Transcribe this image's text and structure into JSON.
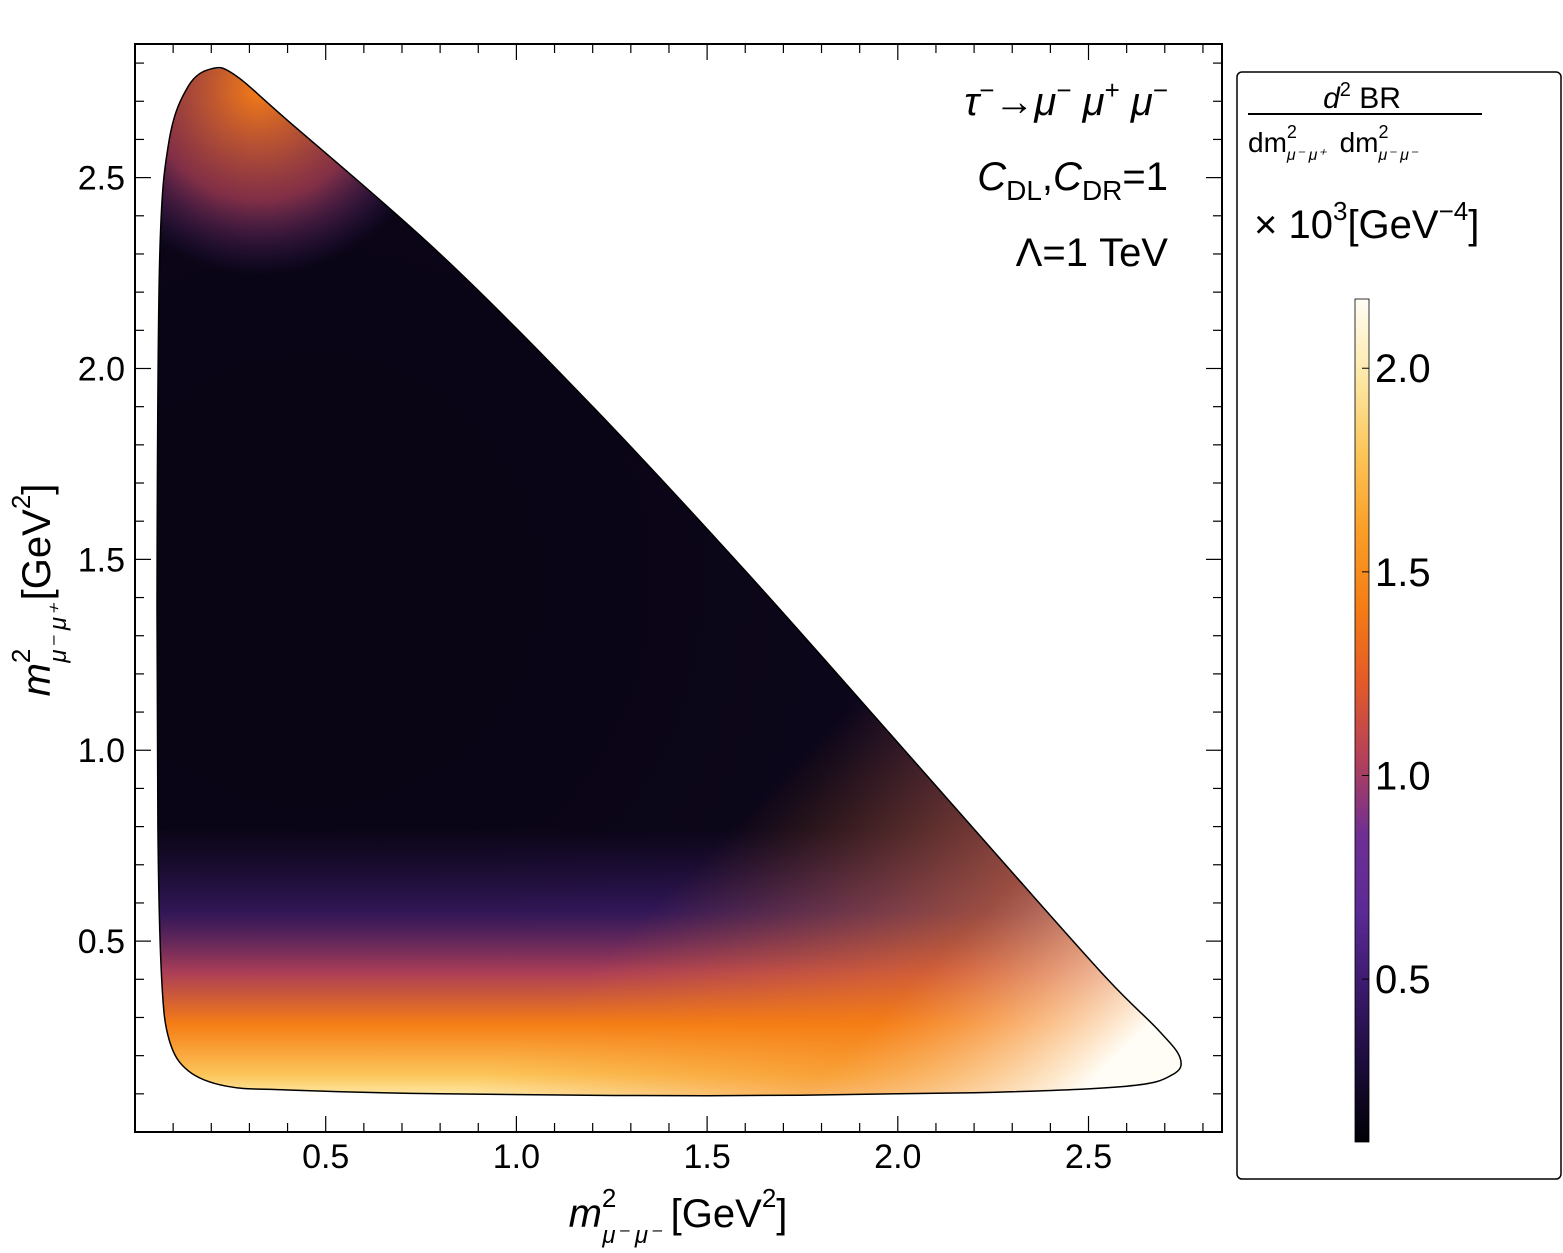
{
  "chart_data": {
    "type": "heatmap",
    "title": "",
    "annotations": {
      "process": {
        "tau": "τ",
        "minus": "−",
        "arrow": "→",
        "mu": "μ",
        "plus": "+"
      },
      "coeff": {
        "c": "C",
        "dl": "DL",
        "comma": ",",
        "dr": "DR",
        "eq": "=1"
      },
      "scale": "Λ=1 TeV"
    },
    "xlabel": {
      "base": "m",
      "sup": "2",
      "sub": "μ⁻ μ⁻",
      "units": "[GeV",
      "units_sup": "2",
      "units_close": "]"
    },
    "ylabel": {
      "base": "m",
      "sup": "2",
      "sub": "μ⁻ μ⁺",
      "units": "[GeV",
      "units_sup": "2",
      "units_close": "]"
    },
    "x_range": [
      0.0,
      2.85
    ],
    "y_range": [
      0.0,
      2.85
    ],
    "x_ticks": [
      {
        "value": 0.5,
        "label": "0.5"
      },
      {
        "value": 1.0,
        "label": "1.0"
      },
      {
        "value": 1.5,
        "label": "1.5"
      },
      {
        "value": 2.0,
        "label": "2.0"
      },
      {
        "value": 2.5,
        "label": "2.5"
      }
    ],
    "y_ticks": [
      {
        "value": 0.5,
        "label": "0.5"
      },
      {
        "value": 1.0,
        "label": "1.0"
      },
      {
        "value": 1.5,
        "label": "1.5"
      },
      {
        "value": 2.0,
        "label": "2.0"
      },
      {
        "value": 2.5,
        "label": "2.5"
      }
    ],
    "minor_tick_step": 0.1,
    "region_boundary": [
      [
        0.058,
        1.5
      ],
      [
        0.065,
        2.3
      ],
      [
        0.09,
        2.6
      ],
      [
        0.14,
        2.74
      ],
      [
        0.2,
        2.785
      ],
      [
        0.26,
        2.77
      ],
      [
        0.4,
        2.65
      ],
      [
        0.8,
        2.3
      ],
      [
        1.2,
        1.9
      ],
      [
        1.6,
        1.47
      ],
      [
        2.0,
        1.02
      ],
      [
        2.3,
        0.68
      ],
      [
        2.55,
        0.4
      ],
      [
        2.68,
        0.27
      ],
      [
        2.74,
        0.195
      ],
      [
        2.72,
        0.15
      ],
      [
        2.6,
        0.12
      ],
      [
        2.2,
        0.103
      ],
      [
        1.5,
        0.095
      ],
      [
        0.8,
        0.1
      ],
      [
        0.4,
        0.11
      ],
      [
        0.24,
        0.12
      ],
      [
        0.14,
        0.16
      ],
      [
        0.09,
        0.24
      ],
      [
        0.07,
        0.4
      ],
      [
        0.06,
        0.8
      ]
    ],
    "colorbar": {
      "title_numerator": {
        "d": "d",
        "sup": "2",
        "br": " BR"
      },
      "title_denominator": {
        "dm": "dm",
        "sup": "2",
        "sub1": "μ⁻ μ⁺",
        "sub2": "μ⁻ μ⁻"
      },
      "scale": {
        "times": "× 10",
        "exp": "3",
        "units": "[GeV",
        "units_exp": "−4",
        "close": "]"
      },
      "range": [
        0.1,
        2.17
      ],
      "ticks": [
        {
          "value": 0.5,
          "label": "0.5"
        },
        {
          "value": 1.0,
          "label": "1.0"
        },
        {
          "value": 1.5,
          "label": "1.5"
        },
        {
          "value": 2.0,
          "label": "2.0"
        }
      ],
      "colormap": [
        "#000004",
        "#1b0c3a",
        "#3a1a6b",
        "#5b2a95",
        "#6e2f93",
        "#b4415a",
        "#e35a28",
        "#f57d15",
        "#fa9f27",
        "#fcc65a",
        "#fde9a8",
        "#fffdf5"
      ]
    }
  }
}
